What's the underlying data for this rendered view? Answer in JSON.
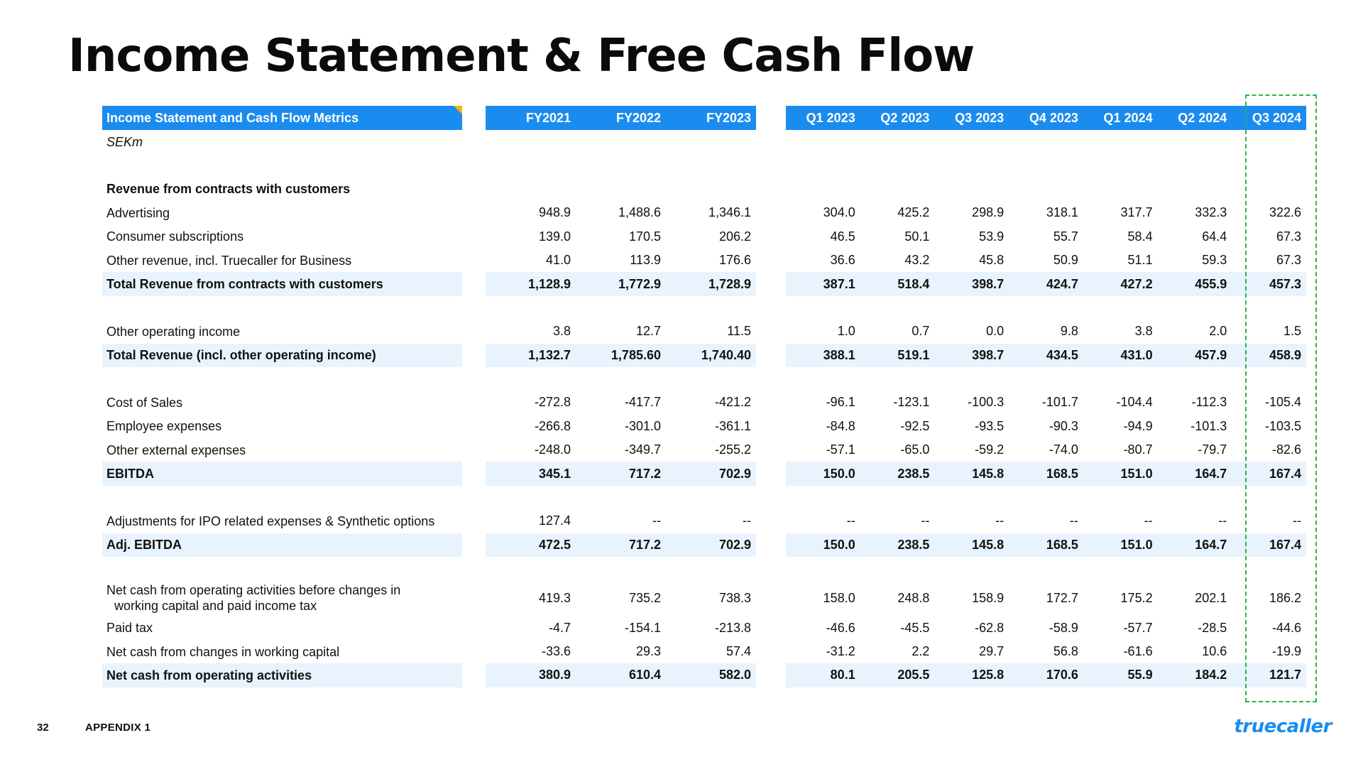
{
  "page": {
    "title": "Income Statement & Free Cash Flow",
    "page_number": "32",
    "appendix": "APPENDIX 1",
    "brand": "truecaller"
  },
  "table": {
    "header_label": "Income Statement and Cash Flow Metrics",
    "annual_columns": [
      "FY2021",
      "FY2022",
      "FY2023"
    ],
    "quarter_columns": [
      "Q1 2023",
      "Q2 2023",
      "Q3 2023",
      "Q4 2023",
      "Q1 2024",
      "Q2 2024",
      "Q3 2024"
    ],
    "highlighted_column": "Q3 2024",
    "rows": [
      {
        "label": "SEKm",
        "type": "unit",
        "annual": [
          "",
          "",
          ""
        ],
        "quarter": [
          "",
          "",
          "",
          "",
          "",
          "",
          ""
        ]
      },
      {
        "label": "",
        "type": "blank",
        "annual": [
          "",
          "",
          ""
        ],
        "quarter": [
          "",
          "",
          "",
          "",
          "",
          "",
          ""
        ]
      },
      {
        "label": "Revenue from contracts with customers",
        "type": "section",
        "annual": [
          "",
          "",
          ""
        ],
        "quarter": [
          "",
          "",
          "",
          "",
          "",
          "",
          ""
        ]
      },
      {
        "label": "Advertising",
        "type": "normal",
        "annual": [
          "948.9",
          "1,488.6",
          "1,346.1"
        ],
        "quarter": [
          "304.0",
          "425.2",
          "298.9",
          "318.1",
          "317.7",
          "332.3",
          "322.6"
        ]
      },
      {
        "label": "Consumer subscriptions",
        "type": "normal",
        "annual": [
          "139.0",
          "170.5",
          "206.2"
        ],
        "quarter": [
          "46.5",
          "50.1",
          "53.9",
          "55.7",
          "58.4",
          "64.4",
          "67.3"
        ]
      },
      {
        "label": "Other revenue, incl. Truecaller for Business",
        "type": "normal",
        "annual": [
          "41.0",
          "113.9",
          "176.6"
        ],
        "quarter": [
          "36.6",
          "43.2",
          "45.8",
          "50.9",
          "51.1",
          "59.3",
          "67.3"
        ]
      },
      {
        "label": "Total Revenue from contracts with customers",
        "type": "bold",
        "annual": [
          "1,128.9",
          "1,772.9",
          "1,728.9"
        ],
        "quarter": [
          "387.1",
          "518.4",
          "398.7",
          "424.7",
          "427.2",
          "455.9",
          "457.3"
        ]
      },
      {
        "label": "",
        "type": "blank",
        "annual": [
          "",
          "",
          ""
        ],
        "quarter": [
          "",
          "",
          "",
          "",
          "",
          "",
          ""
        ]
      },
      {
        "label": "Other operating income",
        "type": "normal",
        "annual": [
          "3.8",
          "12.7",
          "11.5"
        ],
        "quarter": [
          "1.0",
          "0.7",
          "0.0",
          "9.8",
          "3.8",
          "2.0",
          "1.5"
        ]
      },
      {
        "label": "Total Revenue (incl. other operating income)",
        "type": "bold",
        "annual": [
          "1,132.7",
          "1,785.60",
          "1,740.40"
        ],
        "quarter": [
          "388.1",
          "519.1",
          "398.7",
          "434.5",
          "431.0",
          "457.9",
          "458.9"
        ]
      },
      {
        "label": "",
        "type": "blank",
        "annual": [
          "",
          "",
          ""
        ],
        "quarter": [
          "",
          "",
          "",
          "",
          "",
          "",
          ""
        ]
      },
      {
        "label": "Cost of Sales",
        "type": "normal",
        "annual": [
          "-272.8",
          "-417.7",
          "-421.2"
        ],
        "quarter": [
          "-96.1",
          "-123.1",
          "-100.3",
          "-101.7",
          "-104.4",
          "-112.3",
          "-105.4"
        ]
      },
      {
        "label": "Employee expenses",
        "type": "normal",
        "annual": [
          "-266.8",
          "-301.0",
          "-361.1"
        ],
        "quarter": [
          "-84.8",
          "-92.5",
          "-93.5",
          "-90.3",
          "-94.9",
          "-101.3",
          "-103.5"
        ]
      },
      {
        "label": "Other external expenses",
        "type": "normal",
        "annual": [
          "-248.0",
          "-349.7",
          "-255.2"
        ],
        "quarter": [
          "-57.1",
          "-65.0",
          "-59.2",
          "-74.0",
          "-80.7",
          "-79.7",
          "-82.6"
        ]
      },
      {
        "label": "EBITDA",
        "type": "bold",
        "annual": [
          "345.1",
          "717.2",
          "702.9"
        ],
        "quarter": [
          "150.0",
          "238.5",
          "145.8",
          "168.5",
          "151.0",
          "164.7",
          "167.4"
        ]
      },
      {
        "label": "",
        "type": "blank",
        "annual": [
          "",
          "",
          ""
        ],
        "quarter": [
          "",
          "",
          "",
          "",
          "",
          "",
          ""
        ]
      },
      {
        "label": "Adjustments for IPO related expenses & Synthetic options",
        "type": "normal",
        "annual": [
          "127.4",
          "--",
          "--"
        ],
        "quarter": [
          "--",
          "--",
          "--",
          "--",
          "--",
          "--",
          "--"
        ]
      },
      {
        "label": "Adj. EBITDA",
        "type": "bold",
        "annual": [
          "472.5",
          "717.2",
          "702.9"
        ],
        "quarter": [
          "150.0",
          "238.5",
          "145.8",
          "168.5",
          "151.0",
          "164.7",
          "167.4"
        ]
      },
      {
        "label": "",
        "type": "blank",
        "annual": [
          "",
          "",
          ""
        ],
        "quarter": [
          "",
          "",
          "",
          "",
          "",
          "",
          ""
        ]
      },
      {
        "label": "Net cash from operating activities before changes in",
        "label_cont": "working capital and paid income tax",
        "type": "tall",
        "annual": [
          "419.3",
          "735.2",
          "738.3"
        ],
        "quarter": [
          "158.0",
          "248.8",
          "158.9",
          "172.7",
          "175.2",
          "202.1",
          "186.2"
        ]
      },
      {
        "label": "Paid tax",
        "type": "normal",
        "annual": [
          "-4.7",
          "-154.1",
          "-213.8"
        ],
        "quarter": [
          "-46.6",
          "-45.5",
          "-62.8",
          "-58.9",
          "-57.7",
          "-28.5",
          "-44.6"
        ]
      },
      {
        "label": "Net cash from changes in working capital",
        "type": "normal",
        "annual": [
          "-33.6",
          "29.3",
          "57.4"
        ],
        "quarter": [
          "-31.2",
          "2.2",
          "29.7",
          "56.8",
          "-61.6",
          "10.6",
          "-19.9"
        ]
      },
      {
        "label": "Net cash from operating activities",
        "type": "bold",
        "annual": [
          "380.9",
          "610.4",
          "582.0"
        ],
        "quarter": [
          "80.1",
          "205.5",
          "125.8",
          "170.6",
          "55.9",
          "184.2",
          "121.7"
        ]
      }
    ]
  }
}
